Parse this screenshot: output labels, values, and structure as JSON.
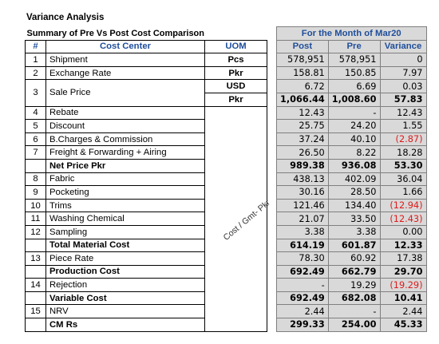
{
  "title": "Variance Analysis",
  "subtitle": "Summary of Pre Vs Post Cost Comparison",
  "month_header": "For the Month of Mar20",
  "columns": {
    "num": "#",
    "cost_center": "Cost Center",
    "uom": "UOM",
    "post": "Post",
    "pre": "Pre",
    "variance": "Variance"
  },
  "rotated_uom": "Cost / Gmt- Pkr",
  "rows": [
    {
      "num": "1",
      "cc": "Shipment",
      "uom": "Pcs",
      "post": "578,951",
      "pre": "578,951",
      "var": "0"
    },
    {
      "num": "2",
      "cc": "Exchange Rate",
      "uom": "Pkr",
      "post": "158.81",
      "pre": "150.85",
      "var": "7.97"
    },
    {
      "num": "3",
      "cc": "Sale Price",
      "uom": "USD",
      "post": "6.72",
      "pre": "6.69",
      "var": "0.03"
    },
    {
      "num": "",
      "cc": "",
      "uom": "Pkr",
      "post": "1,066.44",
      "pre": "1,008.60",
      "var": "57.83"
    },
    {
      "num": "4",
      "cc": "Rebate",
      "uom": "",
      "post": "12.43",
      "pre": "-",
      "var": "12.43"
    },
    {
      "num": "5",
      "cc": "Discount",
      "uom": "",
      "post": "25.75",
      "pre": "24.20",
      "var": "1.55"
    },
    {
      "num": "6",
      "cc": "B.Charges & Commission",
      "uom": "",
      "post": "37.24",
      "pre": "40.10",
      "var": "(2.87)"
    },
    {
      "num": "7",
      "cc": "Freight & Forwarding + Airing",
      "uom": "",
      "post": "26.50",
      "pre": "8.22",
      "var": "18.28"
    },
    {
      "num": "",
      "cc": "Net Price Pkr",
      "uom": "",
      "post": "989.38",
      "pre": "936.08",
      "var": "53.30"
    },
    {
      "num": "8",
      "cc": "Fabric",
      "uom": "",
      "post": "438.13",
      "pre": "402.09",
      "var": "36.04"
    },
    {
      "num": "9",
      "cc": "Pocketing",
      "uom": "",
      "post": "30.16",
      "pre": "28.50",
      "var": "1.66"
    },
    {
      "num": "10",
      "cc": "Trims",
      "uom": "",
      "post": "121.46",
      "pre": "134.40",
      "var": "(12.94)"
    },
    {
      "num": "11",
      "cc": "Washing Chemical",
      "uom": "",
      "post": "21.07",
      "pre": "33.50",
      "var": "(12.43)"
    },
    {
      "num": "12",
      "cc": "Sampling",
      "uom": "",
      "post": "3.38",
      "pre": "3.38",
      "var": "0.00"
    },
    {
      "num": "",
      "cc": "Total Material Cost",
      "uom": "",
      "post": "614.19",
      "pre": "601.87",
      "var": "12.33"
    },
    {
      "num": "13",
      "cc": "Piece Rate",
      "uom": "",
      "post": "78.30",
      "pre": "60.92",
      "var": "17.38"
    },
    {
      "num": "",
      "cc": "Production Cost",
      "uom": "",
      "post": "692.49",
      "pre": "662.79",
      "var": "29.70"
    },
    {
      "num": "14",
      "cc": "Rejection",
      "uom": "",
      "post": "-",
      "pre": "19.29",
      "var": "(19.29)"
    },
    {
      "num": "",
      "cc": "Variable Cost",
      "uom": "",
      "post": "692.49",
      "pre": "682.08",
      "var": "10.41"
    },
    {
      "num": "15",
      "cc": "NRV",
      "uom": "",
      "post": "2.44",
      "pre": "-",
      "var": "2.44"
    },
    {
      "num": "",
      "cc": "CM Rs",
      "uom": "",
      "post": "299.33",
      "pre": "254.00",
      "var": "45.33"
    }
  ]
}
